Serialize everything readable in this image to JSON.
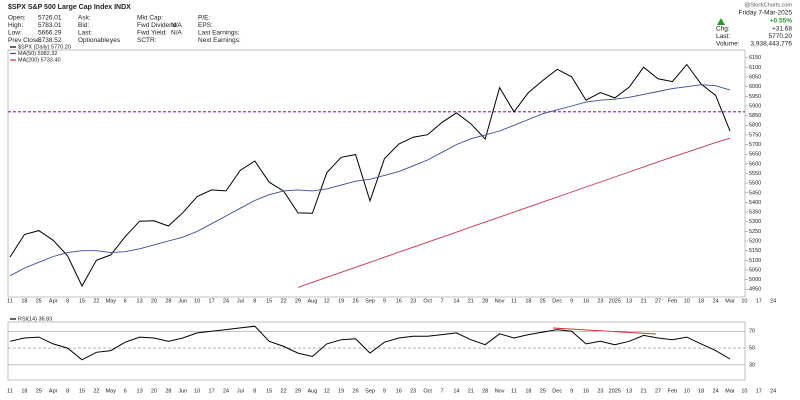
{
  "header": {
    "title": "$SPX S&P 500 Large Cap Index INDX",
    "watermark": "@StockCharts.com",
    "columns": [
      [
        {
          "label": "Open:",
          "value": "5726.01"
        },
        {
          "label": "High:",
          "value": "5783.01"
        },
        {
          "label": "Low:",
          "value": "5666.29"
        },
        {
          "label": "Prev Close:",
          "value": "5738.52"
        }
      ],
      [
        {
          "label": "Ask:"
        },
        {
          "label": "Bid:"
        },
        {
          "label": "Last:"
        },
        {
          "label": "Optionable:",
          "value": "yes"
        }
      ],
      [
        {
          "label": "Mkt Cap:"
        },
        {
          "label": "Fwd Dividend:",
          "value": "N/A"
        },
        {
          "label": "Fwd Yield:",
          "value": "N/A"
        },
        {
          "label": "SCTR:"
        }
      ],
      [
        {
          "label": "P/E:"
        },
        {
          "label": "EPS:"
        },
        {
          "label": "Last Earnings:"
        },
        {
          "label": "Next Earnings:"
        }
      ]
    ],
    "date": "Friday 7-Mar-2025",
    "change_pct": "+0.55%",
    "quote": [
      {
        "label": "Chg:",
        "value": "+31.68"
      },
      {
        "label": "Last:",
        "value": "5770.20"
      },
      {
        "label": "Volume:",
        "value": "3,938,443,776"
      }
    ]
  },
  "chart_data": [
    {
      "type": "line",
      "categories": [
        "11",
        "18",
        "25",
        "Apr",
        "8",
        "15",
        "22",
        "May",
        "6",
        "13",
        "20",
        "28",
        "Jun",
        "10",
        "17",
        "24",
        "Jul",
        "8",
        "15",
        "22",
        "29",
        "Aug",
        "12",
        "19",
        "26",
        "Sep",
        "9",
        "16",
        "23",
        "Oct",
        "7",
        "14",
        "21",
        "28",
        "Nov",
        "11",
        "18",
        "25",
        "Dec",
        "9",
        "16",
        "23",
        "2025",
        "13",
        "21",
        "27",
        "Feb",
        "10",
        "18",
        "24",
        "Mar",
        "10",
        "17",
        "24"
      ],
      "series": [
        {
          "name": "$SPX (Daily) 5770.20",
          "color": "#000000",
          "values": [
            5117,
            5234,
            5254,
            5204,
            5123,
            4967,
            5100,
            5128,
            5223,
            5303,
            5305,
            5278,
            5347,
            5431,
            5465,
            5460,
            5567,
            5615,
            5505,
            5459,
            5346,
            5344,
            5554,
            5634,
            5648,
            5408,
            5626,
            5703,
            5738,
            5751,
            5815,
            5864,
            5808,
            5729,
            5995,
            5870,
            5969,
            6032,
            6090,
            6051,
            5930,
            5970,
            5942,
            5997,
            6101,
            6041,
            6026,
            6115,
            6013,
            5955,
            5770,
            null,
            null,
            null
          ]
        },
        {
          "name": "MA(50) 5982.32",
          "color": "#3a4a9a",
          "values": [
            5020,
            5060,
            5090,
            5120,
            5140,
            5150,
            5150,
            5140,
            5145,
            5160,
            5180,
            5200,
            5220,
            5250,
            5290,
            5330,
            5370,
            5410,
            5440,
            5460,
            5465,
            5460,
            5470,
            5490,
            5510,
            5520,
            5540,
            5560,
            5590,
            5620,
            5660,
            5700,
            5730,
            5750,
            5770,
            5800,
            5830,
            5860,
            5880,
            5900,
            5920,
            5930,
            5935,
            5945,
            5960,
            5975,
            5990,
            6000,
            6010,
            6005,
            5982,
            null,
            null,
            null
          ]
        },
        {
          "name": "MA(200) 5733.40",
          "color": "#c8324e",
          "values": [
            null,
            null,
            null,
            null,
            null,
            null,
            null,
            null,
            null,
            null,
            null,
            null,
            null,
            null,
            null,
            null,
            null,
            null,
            null,
            null,
            4960,
            4986,
            5012,
            5038,
            5064,
            5090,
            5116,
            5142,
            5168,
            5194,
            5220,
            5246,
            5272,
            5298,
            5324,
            5350,
            5376,
            5402,
            5428,
            5454,
            5480,
            5506,
            5532,
            5558,
            5584,
            5610,
            5636,
            5660,
            5685,
            5710,
            5733,
            null,
            null,
            null
          ]
        }
      ],
      "hline": {
        "value": 5870,
        "color": "#9b30c8"
      },
      "ylim": [
        4910,
        6190
      ],
      "yticks": [
        4950,
        5000,
        5050,
        5100,
        5150,
        5200,
        5250,
        5300,
        5350,
        5400,
        5450,
        5500,
        5550,
        5600,
        5650,
        5700,
        5750,
        5800,
        5850,
        5900,
        5950,
        6000,
        6050,
        6100,
        6150
      ]
    },
    {
      "type": "line",
      "categories": [
        "11",
        "18",
        "25",
        "Apr",
        "8",
        "15",
        "22",
        "May",
        "6",
        "13",
        "20",
        "28",
        "Jun",
        "10",
        "17",
        "24",
        "Jul",
        "8",
        "15",
        "22",
        "29",
        "Aug",
        "12",
        "19",
        "26",
        "Sep",
        "9",
        "16",
        "23",
        "Oct",
        "7",
        "14",
        "21",
        "28",
        "Nov",
        "11",
        "18",
        "25",
        "Dec",
        "9",
        "16",
        "23",
        "2025",
        "13",
        "21",
        "27",
        "Feb",
        "10",
        "18",
        "24",
        "Mar",
        "10",
        "17",
        "24"
      ],
      "series": [
        {
          "name": "RSI(14) 36.83",
          "color": "#000000",
          "values": [
            58,
            62,
            63,
            55,
            50,
            36,
            45,
            47,
            57,
            63,
            62,
            58,
            62,
            68,
            70,
            72,
            74,
            76,
            58,
            52,
            44,
            40,
            55,
            60,
            61,
            44,
            57,
            62,
            64,
            64,
            66,
            68,
            60,
            54,
            67,
            62,
            66,
            69,
            72,
            70,
            55,
            58,
            54,
            58,
            65,
            62,
            60,
            63,
            55,
            47,
            37,
            null,
            null,
            null
          ]
        }
      ],
      "ylim": [
        12,
        81
      ],
      "yticks": [
        30,
        50,
        70
      ]
    }
  ]
}
